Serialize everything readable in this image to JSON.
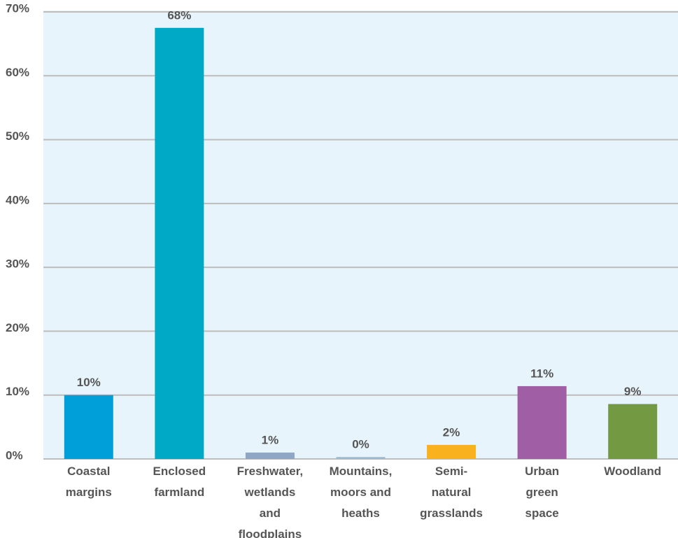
{
  "chart_data": {
    "type": "bar",
    "categories": [
      "Coastal margins",
      "Enclosed farmland",
      "Freshwater, wetlands and floodplains",
      "Mountains, moors and heaths",
      "Semi-natural grasslands",
      "Urban green space",
      "Woodland"
    ],
    "values": [
      10,
      67.5,
      1,
      0.3,
      2.2,
      11.4,
      8.6
    ],
    "value_labels": [
      "10%",
      "68%",
      "1%",
      "0%",
      "2%",
      "11%",
      "9%"
    ],
    "colors": [
      "#009fda",
      "#00a9c6",
      "#8fa7c4",
      "#9bbad4",
      "#f9b21d",
      "#a05ea5",
      "#739a43"
    ],
    "ylim": [
      0,
      70
    ],
    "yticks": [
      {
        "value": 0,
        "label": "0%"
      },
      {
        "value": 10,
        "label": "10%"
      },
      {
        "value": 20,
        "label": "20%"
      },
      {
        "value": 30,
        "label": "30%"
      },
      {
        "value": 40,
        "label": "40%"
      },
      {
        "value": 50,
        "label": "50%"
      },
      {
        "value": 60,
        "label": "60%"
      },
      {
        "value": 70,
        "label": "70%"
      }
    ],
    "grid": true
  }
}
